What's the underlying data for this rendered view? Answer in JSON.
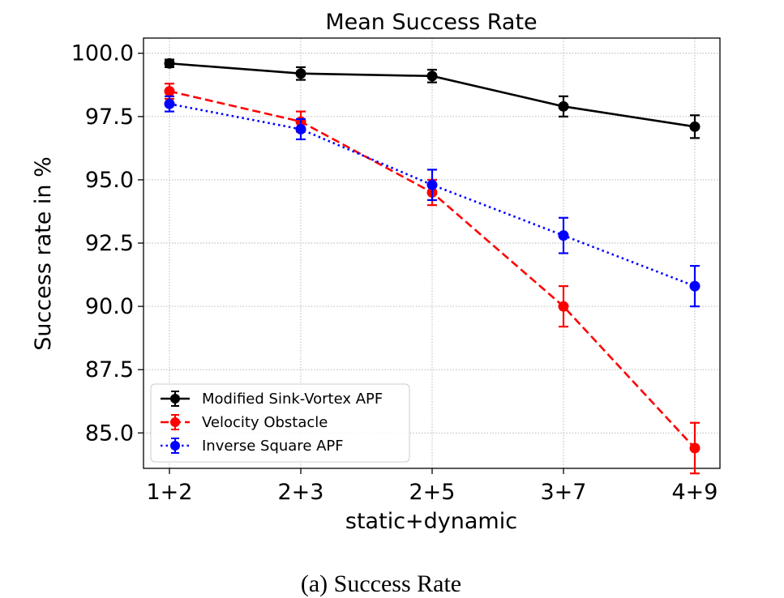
{
  "chart_data": {
    "type": "line",
    "title": "Mean Success Rate",
    "xlabel": "static+dynamic",
    "ylabel": "Success rate in %",
    "categories": [
      "1+2",
      "2+3",
      "2+5",
      "3+7",
      "4+9"
    ],
    "ylim": [
      83.6,
      100.6
    ],
    "yticks": [
      "85.0",
      "87.5",
      "90.0",
      "92.5",
      "95.0",
      "97.5",
      "100.0"
    ],
    "grid": true,
    "legend_position": "lower-left",
    "series": [
      {
        "name": "Modified Sink-Vortex APF",
        "color": "#000000",
        "style": "solid",
        "values": [
          99.6,
          99.2,
          99.1,
          97.9,
          97.1
        ],
        "errors": [
          0.15,
          0.25,
          0.25,
          0.4,
          0.45
        ]
      },
      {
        "name": "Velocity Obstacle",
        "color": "#ff0000",
        "style": "dashed",
        "values": [
          98.5,
          97.3,
          94.5,
          90.0,
          84.4
        ],
        "errors": [
          0.3,
          0.4,
          0.5,
          0.8,
          1.0
        ]
      },
      {
        "name": "Inverse Square APF",
        "color": "#0000ff",
        "style": "dotted",
        "values": [
          98.0,
          97.0,
          94.8,
          92.8,
          90.8
        ],
        "errors": [
          0.3,
          0.4,
          0.6,
          0.7,
          0.8
        ]
      }
    ]
  },
  "caption": "(a) Success Rate"
}
